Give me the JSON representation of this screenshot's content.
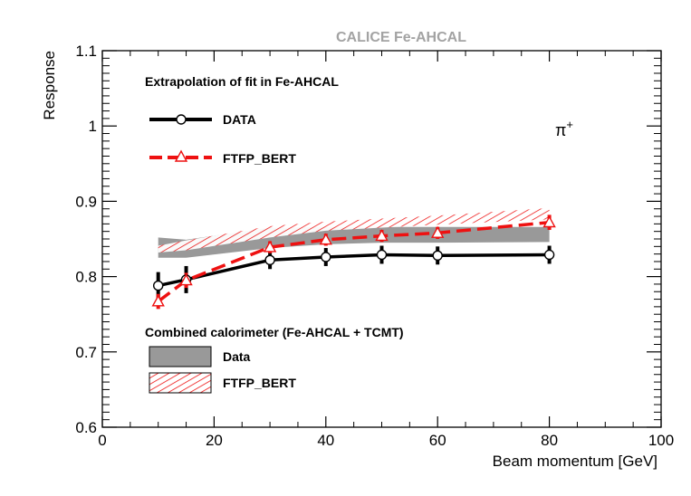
{
  "chart_data": {
    "type": "line",
    "title": "CALICE Fe-AHCAL",
    "xlabel": "Beam momentum [GeV]",
    "ylabel": "Response",
    "xlim": [
      0,
      100
    ],
    "ylim": [
      0.6,
      1.1
    ],
    "x_ticks": [
      0,
      20,
      40,
      60,
      80,
      100
    ],
    "y_ticks": [
      0.6,
      0.7,
      0.8,
      0.9,
      1.0,
      1.1
    ],
    "x_tick_labels": [
      "0",
      "20",
      "40",
      "60",
      "80",
      "100"
    ],
    "y_tick_labels": [
      "0.6",
      "0.7",
      "0.8",
      "0.9",
      "1",
      "1.1"
    ],
    "particle_label": "π",
    "particle_charge": "+",
    "fit_legend": {
      "header": "Extrapolation of fit in Fe-AHCAL",
      "entries": [
        "DATA",
        "FTFP_BERT"
      ]
    },
    "band_legend": {
      "header": "Combined calorimeter (Fe-AHCAL + TCMT)",
      "entries": [
        "Data",
        "FTFP_BERT"
      ]
    },
    "series": [
      {
        "name": "DATA",
        "style": "solid line, open circle markers",
        "color": "#000000",
        "x": [
          10,
          15,
          30,
          40,
          50,
          60,
          80
        ],
        "y": [
          0.788,
          0.796,
          0.822,
          0.826,
          0.829,
          0.828,
          0.829
        ],
        "yerr": [
          0.018,
          0.018,
          0.012,
          0.012,
          0.012,
          0.012,
          0.012
        ]
      },
      {
        "name": "FTFP_BERT",
        "style": "dashed line, open triangle markers",
        "color": "#ee1111",
        "x": [
          10,
          15,
          30,
          40,
          50,
          60,
          80
        ],
        "y": [
          0.767,
          0.795,
          0.839,
          0.849,
          0.854,
          0.858,
          0.872
        ],
        "yerr": [
          0.01,
          0.01,
          0.008,
          0.008,
          0.008,
          0.008,
          0.01
        ]
      }
    ],
    "bands": [
      {
        "name": "Data",
        "style": "solid grey fill",
        "color": "#999999",
        "x": [
          10,
          15,
          30,
          40,
          50,
          60,
          80
        ],
        "y_low": [
          0.825,
          0.825,
          0.838,
          0.843,
          0.845,
          0.845,
          0.846
        ],
        "y_high": [
          0.852,
          0.849,
          0.865,
          0.866,
          0.866,
          0.866,
          0.866
        ]
      },
      {
        "name": "FTFP_BERT",
        "style": "red diagonal hatching",
        "color": "#ee1111",
        "x": [
          10,
          15,
          30,
          40,
          50,
          60,
          80
        ],
        "y_low": [
          0.832,
          0.835,
          0.852,
          0.861,
          0.865,
          0.869,
          0.876
        ],
        "y_high": [
          0.841,
          0.848,
          0.867,
          0.873,
          0.877,
          0.881,
          0.891
        ]
      }
    ]
  }
}
